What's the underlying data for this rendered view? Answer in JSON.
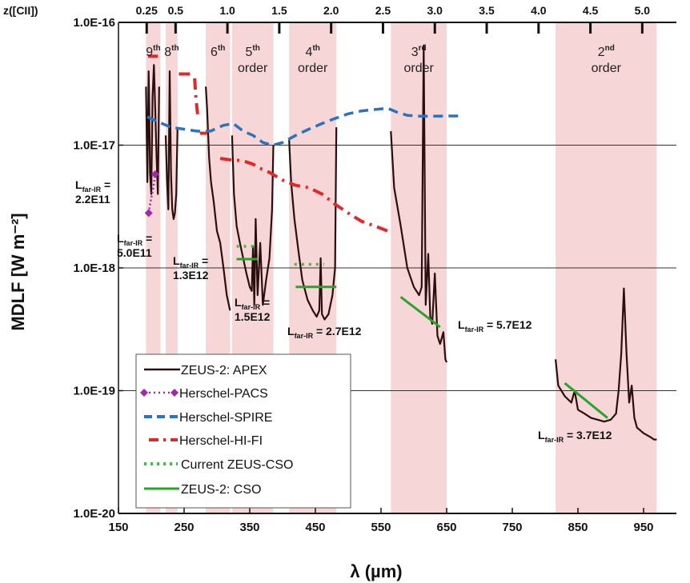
{
  "chart_data": {
    "type": "line",
    "xlabel": "λ (µm)",
    "ylabel": "MDLF [W m⁻²]",
    "xlim": [
      150,
      1000
    ],
    "ylim": [
      1e-20,
      1e-16
    ],
    "yscale": "log",
    "x_ticks": [
      "150",
      "250",
      "350",
      "450",
      "550",
      "650",
      "750",
      "850",
      "950"
    ],
    "y_ticks": [
      "1.0E-16",
      "1.0E-17",
      "1.0E-18",
      "1.0E-19",
      "1.0E-20"
    ],
    "top_axis": {
      "label": "z([CII])",
      "ticks": [
        {
          "label": "0.25",
          "x": 193
        },
        {
          "label": "0.5",
          "x": 237
        },
        {
          "label": "1.0",
          "x": 316
        },
        {
          "label": "1.5",
          "x": 395
        },
        {
          "label": "2.0",
          "x": 474
        },
        {
          "label": "2.5",
          "x": 553
        },
        {
          "label": "3.0",
          "x": 632
        },
        {
          "label": "3.5",
          "x": 711
        },
        {
          "label": "4.0",
          "x": 790
        },
        {
          "label": "4.5",
          "x": 869
        },
        {
          "label": "5.0",
          "x": 948
        }
      ]
    },
    "grid": "horizontal",
    "legend_position": "bottom-left",
    "bands": [
      {
        "x0": 192,
        "x1": 214,
        "label": "9",
        "suffix": "th",
        "label2": ""
      },
      {
        "x0": 222,
        "x1": 240,
        "label": "8",
        "suffix": "th",
        "label2": ""
      },
      {
        "x0": 283,
        "x1": 320,
        "label": "6",
        "suffix": "th",
        "label2": ""
      },
      {
        "x0": 323,
        "x1": 386,
        "label": "5",
        "suffix": "th",
        "label2": "order"
      },
      {
        "x0": 410,
        "x1": 482,
        "label": "4",
        "suffix": "th",
        "label2": "order"
      },
      {
        "x0": 565,
        "x1": 650,
        "label": "3",
        "suffix": "rd",
        "label2": "order"
      },
      {
        "x0": 816,
        "x1": 970,
        "label": "2",
        "suffix": "nd",
        "label2": "order"
      }
    ],
    "series": [
      {
        "name": "ZEUS-2: APEX",
        "color": "#2b0f0f",
        "style": "solid",
        "segments": [
          {
            "x": [
              192,
              194,
              196,
              197,
              198,
              200,
              202,
              204,
              206,
              208,
              210,
              212
            ],
            "y": [
              3e-17,
              5e-18,
              4e-17,
              2e-17,
              6e-18,
              4e-18,
              2.5e-17,
              4.5e-17,
              2e-17,
              8e-18,
              4e-18,
              3e-17
            ]
          },
          {
            "x": [
              222,
              224,
              226,
              228,
              230,
              232,
              234,
              236,
              238,
              240
            ],
            "y": [
              1.2e-17,
              5e-18,
              3e-18,
              4e-17,
              6e-18,
              3e-18,
              2.5e-18,
              2.8e-18,
              4e-18,
              1.4e-17
            ]
          },
          {
            "x": [
              283,
              285,
              288,
              291,
              295,
              300,
              305,
              310,
              315,
              320
            ],
            "y": [
              3e-17,
              2e-17,
              8e-18,
              5e-18,
              3.5e-18,
              2e-18,
              1.6e-18,
              1e-18,
              6e-19,
              4.5e-19
            ]
          },
          {
            "x": [
              323,
              326,
              330,
              335,
              340,
              345,
              350,
              353,
              355,
              357,
              359,
              362,
              366,
              370,
              375,
              380,
              384,
              386
            ],
            "y": [
              1.2e-17,
              4e-18,
              2.2e-18,
              1.6e-18,
              1.2e-18,
              9e-19,
              7e-19,
              6.5e-19,
              1.5e-18,
              5e-19,
              2.5e-18,
              6e-19,
              1.6e-18,
              5e-19,
              8e-19,
              1.2e-18,
              3e-18,
              1e-17
            ]
          },
          {
            "x": [
              410,
              413,
              418,
              424,
              430,
              438,
              446,
              452,
              456,
              458,
              460,
              464,
              470,
              476,
              480,
              482
            ],
            "y": [
              1.1e-17,
              5e-18,
              2.5e-18,
              1.4e-18,
              8e-19,
              5.5e-19,
              4.5e-19,
              4e-19,
              4.5e-19,
              1.2e-18,
              4.2e-19,
              3.8e-19,
              4.2e-19,
              6e-19,
              1e-18,
              1.4e-17
            ]
          },
          {
            "x": [
              565,
              570,
              580,
              590,
              600,
              608,
              612,
              615,
              618,
              622,
              625,
              628,
              632,
              636,
              640,
              645,
              648,
              650
            ],
            "y": [
              1.3e-17,
              4.5e-18,
              2.2e-18,
              1e-18,
              7e-19,
              6e-19,
              7e-19,
              6.5e-17,
              5e-19,
              1.3e-18,
              4e-19,
              3.5e-19,
              9e-19,
              2.8e-19,
              2.4e-19,
              3e-19,
              1.8e-19,
              1.7e-19
            ]
          },
          {
            "x": [
              816,
              820,
              830,
              840,
              845,
              850,
              860,
              870,
              880,
              890,
              900,
              908,
              912,
              916,
              920,
              924,
              928,
              932,
              936,
              940,
              950,
              960,
              966,
              970
            ],
            "y": [
              1.8e-19,
              1.1e-19,
              9e-20,
              8e-20,
              1e-19,
              7e-20,
              6.5e-20,
              6e-20,
              5.8e-20,
              5.6e-20,
              5.8e-20,
              6.5e-20,
              1e-19,
              2e-19,
              6.8e-19,
              2e-19,
              8e-20,
              1.1e-19,
              6e-20,
              5e-20,
              4.5e-20,
              4.2e-20,
              4e-20,
              4e-20
            ]
          }
        ]
      },
      {
        "name": "Herschel-PACS",
        "color": "#a02aa8",
        "style": "dot-diamond",
        "segments": [
          {
            "x": [
              196,
              199,
              203,
              206
            ],
            "y": [
              2.8e-18,
              3.5e-18,
              4.5e-18,
              5.8e-18
            ]
          }
        ]
      },
      {
        "name": "Herschel-SPIRE",
        "color": "#2b72c0",
        "style": "dashed",
        "segments": [
          {
            "x": [
              194,
              210,
              230,
              250,
              270,
              290,
              310,
              325,
              340,
              355,
              370,
              385,
              400,
              420,
              440,
              460,
              480,
              500,
              520,
              540,
              560,
              575,
              590,
              610,
              630,
              650,
              672
            ],
            "y": [
              1.7e-17,
              1.55e-17,
              1.4e-17,
              1.35e-17,
              1.3e-17,
              1.3e-17,
              1.45e-17,
              1.5e-17,
              1.3e-17,
              1.2e-17,
              1.05e-17,
              1e-17,
              1.05e-17,
              1.2e-17,
              1.35e-17,
              1.5e-17,
              1.65e-17,
              1.8e-17,
              1.9e-17,
              1.95e-17,
              2e-17,
              1.85e-17,
              1.75e-17,
              1.72e-17,
              1.72e-17,
              1.73e-17,
              1.73e-17
            ]
          }
        ]
      },
      {
        "name": "Herschel-HI-FI",
        "color": "#e02a2a",
        "style": "dash-dot",
        "segments": [
          {
            "x": [
              195,
              210
            ],
            "y": [
              5.3e-17,
              5.3e-17
            ]
          },
          {
            "x": [
              242,
              262
            ],
            "y": [
              3.8e-17,
              3.8e-17
            ]
          },
          {
            "x": [
              266,
              268,
              271
            ],
            "y": [
              3.5e-17,
              2.4e-17,
              1.7e-17
            ]
          },
          {
            "x": [
              274,
              285
            ],
            "y": [
              1.25e-17,
              1.25e-17
            ]
          },
          {
            "x": [
              305,
              320,
              335,
              345,
              355,
              365,
              380,
              400,
              420,
              440,
              460,
              480,
              500,
              520,
              540,
              560
            ],
            "y": [
              7.8e-18,
              7.6e-18,
              7.5e-18,
              7.3e-18,
              7e-18,
              6.5e-18,
              6e-18,
              5.2e-18,
              4.7e-18,
              4.5e-18,
              4e-18,
              3.3e-18,
              2.8e-18,
              2.4e-18,
              2.2e-18,
              2e-18
            ]
          }
        ]
      },
      {
        "name": "Current ZEUS-CSO",
        "color": "#4cb64c",
        "style": "dotted",
        "segments": [
          {
            "x": [
              330,
              362
            ],
            "y": [
              1.5e-18,
              1.5e-18
            ]
          },
          {
            "x": [
              418,
              463
            ],
            "y": [
              1.07e-18,
              1.07e-18
            ]
          }
        ]
      },
      {
        "name": "ZEUS-2: CSO",
        "color": "#2aa32a",
        "style": "solid",
        "segments": [
          {
            "x": [
              330,
              362
            ],
            "y": [
              1.18e-18,
              1.18e-18
            ]
          },
          {
            "x": [
              420,
              482
            ],
            "y": [
              7e-19,
              7e-19
            ]
          },
          {
            "x": [
              580,
              640
            ],
            "y": [
              5.8e-19,
              3.3e-19
            ]
          },
          {
            "x": [
              830,
              895
            ],
            "y": [
              1.15e-19,
              6e-20
            ]
          }
        ]
      }
    ]
  },
  "top_axis_label": "z([CII])",
  "legend": {
    "items": [
      {
        "label": "ZEUS-2: APEX"
      },
      {
        "label": "Herschel-PACS"
      },
      {
        "label": "Herschel-SPIRE"
      },
      {
        "label": "Herschel-HI-FI"
      },
      {
        "label": "Current ZEUS-CSO"
      },
      {
        "label": "ZEUS-2: CSO"
      }
    ]
  },
  "annotations": [
    {
      "prefix": "L",
      "sub": "far-IR",
      "suffix": " =",
      "value": "2.2E11"
    },
    {
      "prefix": "L",
      "sub": "far-IR",
      "suffix": " =",
      "value": "5.0E11"
    },
    {
      "prefix": "L",
      "sub": "far-IR",
      "suffix": " =",
      "value": "1.3E12"
    },
    {
      "prefix": "L",
      "sub": "far-IR",
      "suffix": " =",
      "value": "1.5E12"
    },
    {
      "prefix": "L",
      "sub": "far-IR",
      "suffix": " = 2.7E12",
      "value": ""
    },
    {
      "prefix": "L",
      "sub": "far-IR",
      "suffix": " = 5.7E12",
      "value": ""
    },
    {
      "prefix": "L",
      "sub": "far-IR",
      "suffix": " = 3.7E12",
      "value": ""
    }
  ]
}
